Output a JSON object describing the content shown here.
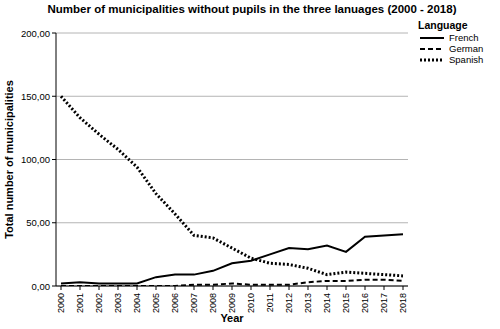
{
  "chart_data": {
    "type": "line",
    "title": "Number of municipalities without pupils in the three lanuages (2000 - 2018)",
    "x_label": "Year",
    "y_label": "Total number of municipalities",
    "legend_title": "Language",
    "categories": [
      "2000",
      "2001",
      "2002",
      "2003",
      "2004",
      "2005",
      "2006",
      "2007",
      "2008",
      "2009",
      "2010",
      "2011",
      "2012",
      "2013",
      "2014",
      "2015",
      "2016",
      "2017",
      "2018"
    ],
    "series": [
      {
        "name": "French",
        "color": "#000000",
        "line_style": "solid",
        "values": [
          2,
          3,
          2,
          2,
          2,
          7,
          9,
          9,
          12,
          18,
          20,
          25,
          30,
          29,
          32,
          27,
          39,
          40,
          41
        ]
      },
      {
        "name": "German",
        "color": "#000000",
        "line_style": "dashed",
        "values": [
          0,
          0,
          0,
          0,
          0,
          0,
          0,
          1,
          1,
          2,
          1,
          1,
          1,
          3,
          4,
          4,
          5,
          5,
          4
        ]
      },
      {
        "name": "Spanish",
        "color": "#000000",
        "line_style": "dotted",
        "values": [
          150,
          133,
          120,
          108,
          94,
          73,
          57,
          40,
          38,
          30,
          22,
          18,
          17,
          14,
          9,
          11,
          10,
          9,
          8
        ]
      }
    ],
    "ylim": [
      0,
      200
    ],
    "yticks": [
      {
        "value": 0,
        "label": "0,00"
      },
      {
        "value": 50,
        "label": "50,00"
      },
      {
        "value": 100,
        "label": "100,00"
      },
      {
        "value": 150,
        "label": "150,00"
      },
      {
        "value": 200,
        "label": "200,00"
      }
    ],
    "grid": true,
    "legend": "right"
  }
}
